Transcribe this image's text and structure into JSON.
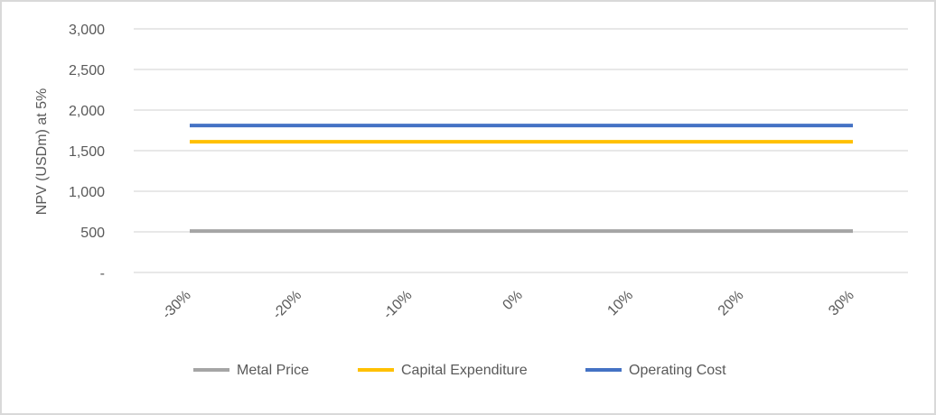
{
  "chart_data": {
    "type": "line",
    "title": "",
    "xlabel": "",
    "ylabel": "NPV (USDm) at 5%",
    "categories": [
      "-30%",
      "-20%",
      "-10%",
      "0%",
      "10%",
      "20%",
      "30%"
    ],
    "ylim": [
      0,
      3000
    ],
    "yticks": [
      {
        "value": 0,
        "label": "-"
      },
      {
        "value": 500,
        "label": "500"
      },
      {
        "value": 1000,
        "label": "1,000"
      },
      {
        "value": 1500,
        "label": "1,500"
      },
      {
        "value": 2000,
        "label": "2,000"
      },
      {
        "value": 2500,
        "label": "2,500"
      },
      {
        "value": 3000,
        "label": "3,000"
      }
    ],
    "grid": true,
    "legend_position": "bottom",
    "series": [
      {
        "name": "Metal Price",
        "color": "#a5a5a5",
        "values": [
          510,
          510,
          510,
          510,
          510,
          510,
          510
        ]
      },
      {
        "name": "Capital Expenditure",
        "color": "#ffc000",
        "values": [
          1610,
          1610,
          1610,
          1610,
          1610,
          1610,
          1610
        ]
      },
      {
        "name": "Operating Cost",
        "color": "#4472c4",
        "values": [
          1810,
          1810,
          1810,
          1810,
          1810,
          1810,
          1810
        ]
      }
    ]
  }
}
